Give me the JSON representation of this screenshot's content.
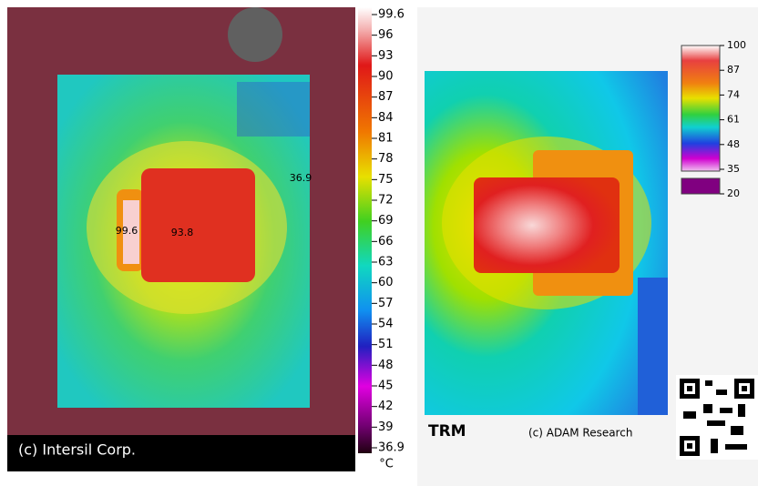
{
  "left_panel": {
    "caption": "(c) Intersil Corp.",
    "spot_labels": [
      "36.9",
      "99.6",
      "93.8"
    ],
    "scale_labels": [
      "99.6",
      "96",
      "93",
      "90",
      "87",
      "84",
      "81",
      "78",
      "75",
      "72",
      "69",
      "66",
      "63",
      "60",
      "57",
      "54",
      "51",
      "48",
      "45",
      "42",
      "39",
      "36.9"
    ],
    "unit": "°C"
  },
  "right_panel": {
    "title": "TRM",
    "caption": "(c) ADAM Research",
    "scale_labels": [
      "100",
      "87",
      "74",
      "61",
      "48",
      "35",
      "20"
    ]
  }
}
